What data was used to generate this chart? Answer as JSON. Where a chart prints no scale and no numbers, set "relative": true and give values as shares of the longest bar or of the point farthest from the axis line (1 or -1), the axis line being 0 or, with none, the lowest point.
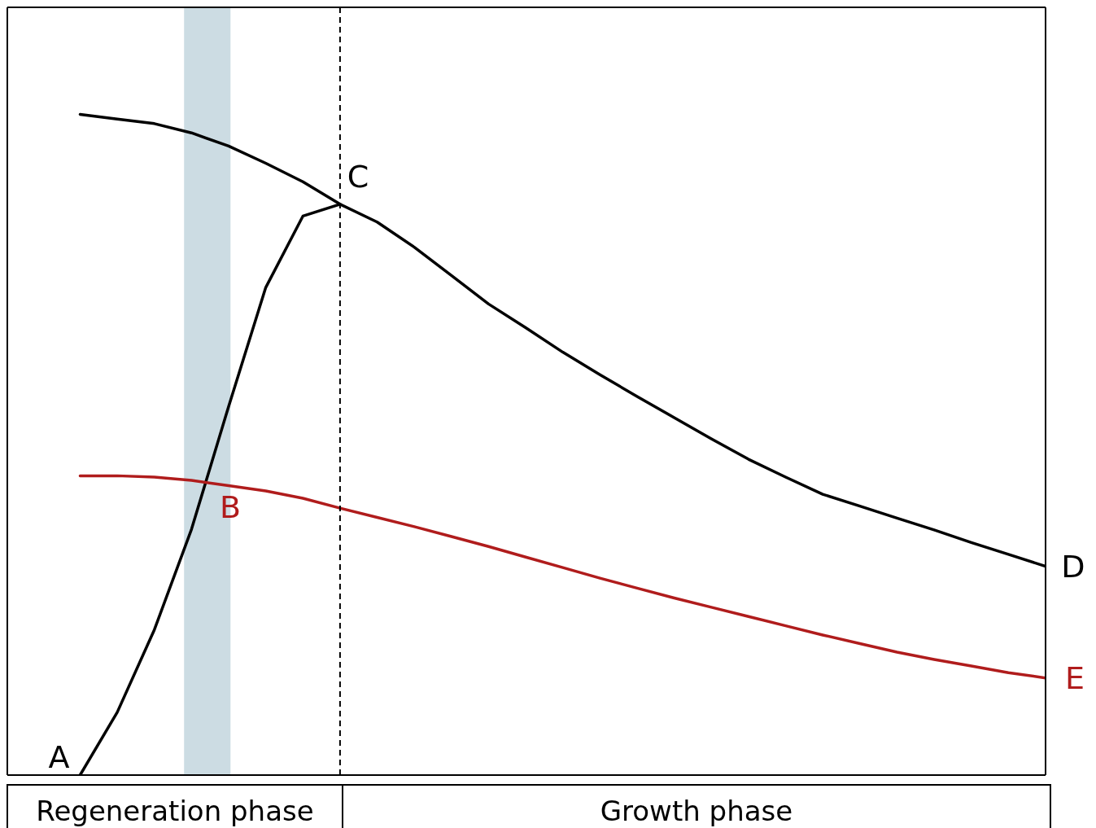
{
  "chart_data": {
    "type": "line",
    "relative": true,
    "marker": "none",
    "line_style": "solid",
    "categories": [
      null,
      null,
      null,
      null,
      null,
      null,
      null,
      null,
      null,
      null,
      null,
      null,
      null,
      null,
      null,
      null,
      null,
      null,
      null,
      null,
      null,
      null,
      null,
      null,
      null,
      null,
      null
    ],
    "series": [
      {
        "color": "#000000",
        "values": [
          1.0,
          0.993,
          0.986,
          0.972,
          0.952,
          0.926,
          0.898,
          0.864,
          null,
          null,
          null,
          null,
          null,
          null,
          null,
          null,
          null,
          null,
          null,
          null,
          null,
          null,
          null,
          null,
          null,
          null,
          null
        ]
      },
      {
        "color": "#000000",
        "values": [
          0.0,
          0.095,
          0.22,
          0.372,
          0.558,
          0.738,
          0.846,
          0.864,
          0.837,
          0.799,
          0.756,
          0.713,
          0.677,
          0.64,
          0.606,
          0.573,
          0.541,
          0.509,
          0.478,
          0.451,
          0.425,
          0.407,
          0.389,
          0.371,
          0.352,
          0.334,
          0.316
        ]
      },
      {
        "color": "#b01c1c",
        "values": [
          0.453,
          0.453,
          0.451,
          0.446,
          0.438,
          0.43,
          0.419,
          0.404,
          0.39,
          0.376,
          0.361,
          0.346,
          0.33,
          0.314,
          0.298,
          0.283,
          0.268,
          0.254,
          0.24,
          0.226,
          0.212,
          0.199,
          0.186,
          0.175,
          0.165,
          0.155,
          0.147
        ]
      }
    ],
    "annotations": [
      "A",
      "B",
      "C",
      "D",
      "E",
      "Regeneration phase",
      "Growth phase"
    ]
  }
}
